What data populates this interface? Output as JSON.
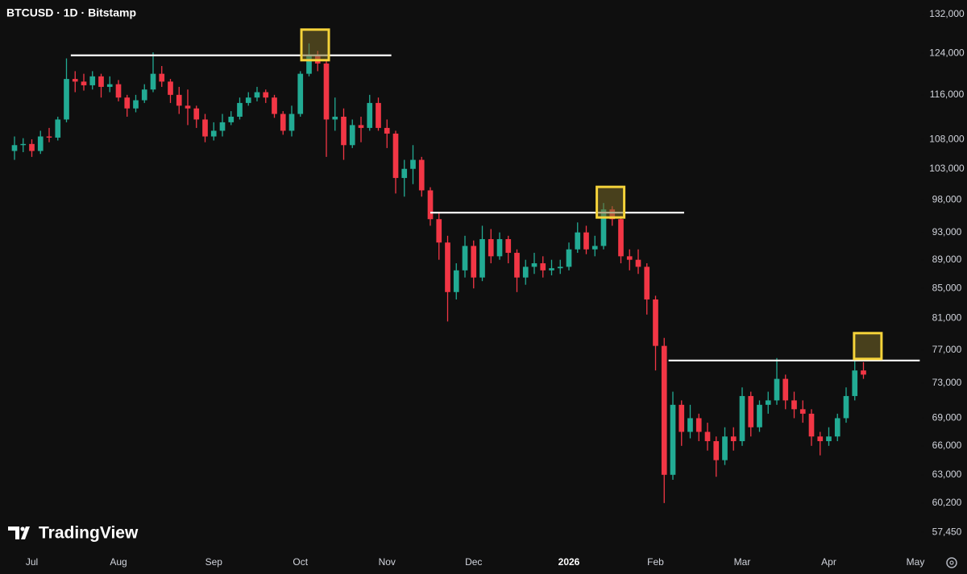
{
  "chart_data": {
    "type": "candlestick",
    "title": "BTCUSD · 1D · Bitstamp",
    "watermark": "TradingView",
    "categories": [
      null,
      null,
      "Jul",
      null,
      null,
      null,
      null,
      null,
      null,
      null,
      null,
      null,
      "Aug",
      null,
      null,
      null,
      null,
      null,
      null,
      null,
      null,
      null,
      null,
      "Sep",
      null,
      null,
      null,
      null,
      null,
      null,
      null,
      null,
      null,
      "Oct",
      null,
      null,
      null,
      null,
      null,
      null,
      null,
      null,
      null,
      "Nov",
      null,
      null,
      null,
      null,
      null,
      null,
      null,
      null,
      null,
      "Dec",
      null,
      null,
      null,
      null,
      null,
      null,
      null,
      null,
      null,
      null,
      "2026",
      null,
      null,
      null,
      null,
      null,
      null,
      null,
      null,
      null,
      "Feb",
      null,
      null,
      null,
      null,
      null,
      null,
      null,
      null,
      null,
      "Mar",
      null,
      null,
      null,
      null,
      null,
      null,
      null,
      null,
      null,
      "Apr",
      null,
      null,
      null,
      null,
      null,
      null,
      null,
      null,
      null,
      "May"
    ],
    "open": [
      106000,
      107000,
      107200,
      106000,
      108500,
      108300,
      111500,
      119000,
      118500,
      117800,
      119500,
      117500,
      118000,
      115500,
      113500,
      115000,
      117000,
      120000,
      118500,
      116000,
      114000,
      113500,
      111500,
      108500,
      109500,
      111000,
      112000,
      114500,
      115500,
      116500,
      115500,
      112500,
      109500,
      112500,
      120000,
      123500,
      122000,
      111500,
      112000,
      107000,
      110500,
      110000,
      114500,
      110000,
      109000,
      101500,
      103000,
      104500,
      99500,
      95000,
      91500,
      84500,
      87500,
      91000,
      86500,
      92000,
      89500,
      92000,
      90000,
      86500,
      88000,
      88500,
      87500,
      87800,
      88000,
      90500,
      93000,
      90500,
      91000,
      96500,
      95000,
      89500,
      89000,
      88000,
      83500,
      77500,
      63000,
      70500,
      67500,
      69000,
      67500,
      66500,
      64500,
      67000,
      66500,
      71500,
      68000,
      70500,
      71000,
      73500,
      71000,
      70000,
      69500,
      67000,
      66500,
      67000,
      69000,
      71500,
      74500,
      null,
      null,
      null,
      null,
      null,
      null
    ],
    "high": [
      108500,
      108200,
      108000,
      109500,
      110000,
      112000,
      123000,
      120500,
      120000,
      120500,
      120000,
      119500,
      118800,
      116000,
      116000,
      118000,
      124200,
      121500,
      119000,
      117500,
      117000,
      114000,
      112500,
      111000,
      112500,
      113000,
      115500,
      116500,
      117500,
      117000,
      116000,
      113000,
      114000,
      120500,
      126000,
      124500,
      122500,
      115500,
      113500,
      111500,
      112000,
      116000,
      115500,
      111500,
      109500,
      104500,
      107000,
      105000,
      100000,
      96000,
      92500,
      88500,
      92500,
      91800,
      94000,
      93500,
      93000,
      92500,
      90500,
      89000,
      90000,
      89500,
      89000,
      89000,
      91500,
      94500,
      94000,
      92500,
      97500,
      97000,
      95500,
      90500,
      90500,
      88500,
      84000,
      78500,
      72000,
      71000,
      70500,
      69500,
      68500,
      67000,
      68000,
      68000,
      72500,
      72000,
      71000,
      72000,
      76000,
      74000,
      72000,
      71000,
      70000,
      67500,
      68000,
      69500,
      72500,
      76000,
      75500,
      null,
      null,
      null,
      null,
      null,
      null
    ],
    "low": [
      104500,
      105800,
      105000,
      105500,
      107500,
      107800,
      111000,
      116500,
      116800,
      117000,
      115500,
      116500,
      114800,
      112000,
      112800,
      114500,
      116500,
      117500,
      114500,
      112500,
      110500,
      110000,
      107500,
      107800,
      108500,
      110500,
      111500,
      114000,
      114800,
      114500,
      111800,
      108800,
      108500,
      112000,
      119500,
      120500,
      105000,
      109500,
      104500,
      106500,
      107500,
      109500,
      109500,
      106500,
      99000,
      98500,
      100500,
      98500,
      94000,
      89000,
      80600,
      83500,
      86500,
      85000,
      86000,
      88500,
      89000,
      88500,
      84500,
      85500,
      87000,
      86500,
      86800,
      87000,
      87500,
      90000,
      89800,
      89500,
      90500,
      94000,
      88500,
      87500,
      87000,
      81500,
      74500,
      60200,
      62500,
      66000,
      66800,
      66500,
      65500,
      62800,
      64000,
      65500,
      66000,
      67000,
      67500,
      69500,
      70500,
      70000,
      69000,
      68500,
      66000,
      65000,
      66000,
      66500,
      68500,
      71000,
      73500,
      null,
      null,
      null,
      null,
      null,
      null
    ],
    "close": [
      107000,
      107200,
      106000,
      108500,
      108300,
      111500,
      119000,
      118500,
      117800,
      119500,
      117500,
      118000,
      115500,
      113500,
      115000,
      117000,
      120000,
      118500,
      116000,
      114000,
      113500,
      111500,
      108500,
      109500,
      111000,
      112000,
      114500,
      115500,
      116500,
      115500,
      112500,
      109500,
      112500,
      120000,
      123500,
      122000,
      111500,
      112000,
      107000,
      110500,
      110000,
      114500,
      110000,
      109000,
      101500,
      103000,
      104500,
      99500,
      95000,
      91500,
      84500,
      87500,
      91000,
      86500,
      92000,
      89500,
      92000,
      90000,
      86500,
      88000,
      88500,
      87500,
      87800,
      88000,
      90500,
      93000,
      90500,
      91000,
      96500,
      95000,
      89500,
      89000,
      88000,
      83500,
      77500,
      63000,
      70500,
      67500,
      69000,
      67500,
      66500,
      64500,
      67000,
      66500,
      71500,
      68000,
      70500,
      71000,
      73500,
      71000,
      70000,
      69500,
      67000,
      66500,
      67000,
      69000,
      71500,
      74500,
      74000,
      null,
      null,
      null,
      null,
      null,
      null
    ],
    "up_color": "#22ab94",
    "down_color": "#f23645",
    "level_color": "#ffffff",
    "levels": [
      123600,
      96000,
      75700
    ],
    "log": true,
    "ylim": [
      55700,
      135100
    ],
    "yticks": [
      {
        "value": 132000,
        "label": "132,000"
      },
      {
        "value": 124000,
        "label": "124,000"
      },
      {
        "value": 116000,
        "label": "116,000"
      },
      {
        "value": 108000,
        "label": "108,000"
      },
      {
        "value": 103000,
        "label": "103,000"
      },
      {
        "value": 98000,
        "label": "98,000"
      },
      {
        "value": 93000,
        "label": "93,000"
      },
      {
        "value": 89000,
        "label": "89,000"
      },
      {
        "value": 85000,
        "label": "85,000"
      },
      {
        "value": 81000,
        "label": "81,000"
      },
      {
        "value": 77000,
        "label": "77,000"
      },
      {
        "value": 73000,
        "label": "73,000"
      },
      {
        "value": 69000,
        "label": "69,000"
      },
      {
        "value": 66000,
        "label": "66,000"
      },
      {
        "value": 63000,
        "label": "63,000"
      },
      {
        "value": 60200,
        "label": "60,200"
      },
      {
        "value": 57450,
        "label": "57,450"
      }
    ]
  }
}
